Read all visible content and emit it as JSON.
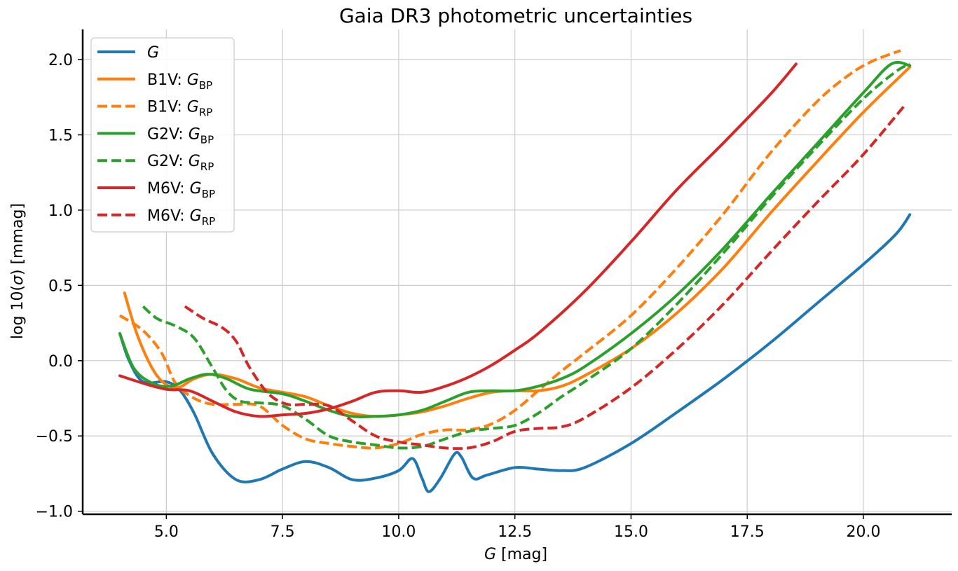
{
  "chart_data": {
    "type": "line",
    "title": "Gaia DR3 photometric uncertainties",
    "xlabel": {
      "var": "G",
      "unit": " [mag]"
    },
    "ylabel": {
      "prefix": "log 10(",
      "sym": "σ",
      "suffix": ") [mmag]"
    },
    "xlim": [
      3.2,
      21.9
    ],
    "ylim": [
      -1.02,
      2.2
    ],
    "xticks": [
      5.0,
      7.5,
      10.0,
      12.5,
      15.0,
      17.5,
      20.0
    ],
    "xtick_labels": [
      "5.0",
      "7.5",
      "10.0",
      "12.5",
      "15.0",
      "17.5",
      "20.0"
    ],
    "yticks": [
      -1.0,
      -0.5,
      0.0,
      0.5,
      1.0,
      1.5,
      2.0
    ],
    "ytick_labels": [
      "−1.0",
      "−0.5",
      "0.0",
      "0.5",
      "1.0",
      "1.5",
      "2.0"
    ],
    "grid": true,
    "legend_position": "top-left",
    "series": [
      {
        "name": "G",
        "legend_prefix": "",
        "legend_var": "G",
        "legend_sub": "",
        "color": "#1f77b4",
        "dash": "solid",
        "x": [
          4.0,
          4.2,
          4.5,
          5.0,
          5.3,
          5.6,
          6.0,
          6.5,
          7.0,
          7.5,
          8.0,
          8.5,
          9.0,
          9.5,
          10.0,
          10.3,
          10.5,
          10.65,
          10.9,
          11.2,
          11.35,
          11.6,
          11.9,
          12.5,
          13.0,
          13.5,
          14.0,
          15.0,
          16.0,
          17.0,
          18.0,
          19.0,
          20.0,
          20.7,
          21.0
        ],
        "y": [
          0.18,
          0.0,
          -0.14,
          -0.14,
          -0.2,
          -0.35,
          -0.62,
          -0.79,
          -0.79,
          -0.72,
          -0.67,
          -0.71,
          -0.79,
          -0.78,
          -0.73,
          -0.65,
          -0.78,
          -0.87,
          -0.78,
          -0.62,
          -0.64,
          -0.78,
          -0.76,
          -0.71,
          -0.72,
          -0.73,
          -0.71,
          -0.55,
          -0.34,
          -0.12,
          0.12,
          0.38,
          0.64,
          0.84,
          0.97
        ]
      },
      {
        "name": "B1V: G_BP",
        "legend_prefix": "B1V: ",
        "legend_var": "G",
        "legend_sub": "BP",
        "color": "#ff7f0e",
        "dash": "solid",
        "x": [
          4.1,
          4.4,
          4.8,
          5.2,
          5.6,
          6.0,
          6.5,
          7.0,
          7.5,
          8.0,
          8.5,
          9.0,
          9.5,
          10.0,
          10.5,
          11.0,
          11.5,
          12.0,
          12.5,
          13.0,
          13.5,
          14.0,
          15.0,
          16.0,
          17.0,
          18.0,
          19.0,
          20.0,
          21.0
        ],
        "y": [
          0.45,
          0.15,
          -0.1,
          -0.18,
          -0.12,
          -0.09,
          -0.12,
          -0.18,
          -0.21,
          -0.24,
          -0.3,
          -0.35,
          -0.37,
          -0.36,
          -0.34,
          -0.3,
          -0.25,
          -0.21,
          -0.2,
          -0.2,
          -0.17,
          -0.1,
          0.08,
          0.32,
          0.62,
          0.98,
          1.32,
          1.65,
          1.95
        ]
      },
      {
        "name": "B1V: G_RP",
        "legend_prefix": "B1V: ",
        "legend_var": "G",
        "legend_sub": "RP",
        "color": "#ff7f0e",
        "dash": "dashed",
        "x": [
          4.0,
          4.5,
          4.9,
          5.2,
          5.6,
          6.0,
          6.5,
          7.0,
          7.5,
          8.0,
          8.5,
          9.0,
          9.5,
          10.0,
          10.5,
          11.0,
          11.5,
          12.0,
          12.5,
          13.0,
          13.5,
          14.0,
          15.0,
          16.0,
          17.0,
          18.0,
          19.0,
          19.7,
          20.2,
          20.8
        ],
        "y": [
          0.3,
          0.2,
          0.05,
          -0.15,
          -0.25,
          -0.29,
          -0.29,
          -0.3,
          -0.43,
          -0.52,
          -0.55,
          -0.57,
          -0.58,
          -0.55,
          -0.49,
          -0.46,
          -0.46,
          -0.42,
          -0.33,
          -0.2,
          -0.07,
          0.05,
          0.3,
          0.62,
          0.98,
          1.38,
          1.72,
          1.9,
          1.99,
          2.06
        ]
      },
      {
        "name": "G2V: G_BP",
        "legend_prefix": "G2V: ",
        "legend_var": "G",
        "legend_sub": "BP",
        "color": "#2ca02c",
        "dash": "solid",
        "x": [
          4.0,
          4.3,
          4.7,
          5.1,
          5.5,
          5.9,
          6.3,
          6.8,
          7.5,
          8.0,
          8.5,
          9.0,
          9.5,
          10.0,
          10.5,
          11.0,
          11.5,
          12.0,
          12.5,
          13.0,
          13.5,
          14.0,
          15.0,
          16.0,
          17.0,
          18.0,
          19.0,
          20.0,
          20.6,
          21.0
        ],
        "y": [
          0.18,
          -0.05,
          -0.15,
          -0.17,
          -0.12,
          -0.09,
          -0.12,
          -0.19,
          -0.22,
          -0.27,
          -0.33,
          -0.37,
          -0.37,
          -0.36,
          -0.33,
          -0.27,
          -0.21,
          -0.2,
          -0.2,
          -0.17,
          -0.12,
          -0.04,
          0.18,
          0.44,
          0.75,
          1.1,
          1.44,
          1.78,
          1.97,
          1.96
        ]
      },
      {
        "name": "G2V: G_RP",
        "legend_prefix": "G2V: ",
        "legend_var": "G",
        "legend_sub": "RP",
        "color": "#2ca02c",
        "dash": "dashed",
        "x": [
          4.5,
          4.8,
          5.2,
          5.6,
          6.0,
          6.3,
          6.6,
          7.0,
          7.5,
          8.0,
          8.5,
          9.0,
          9.5,
          10.0,
          10.5,
          11.0,
          11.5,
          12.0,
          12.5,
          13.0,
          13.5,
          14.0,
          15.0,
          16.0,
          17.0,
          18.0,
          19.0,
          20.0,
          20.7,
          21.0
        ],
        "y": [
          0.36,
          0.28,
          0.23,
          0.15,
          -0.05,
          -0.2,
          -0.27,
          -0.28,
          -0.3,
          -0.39,
          -0.5,
          -0.54,
          -0.56,
          -0.58,
          -0.57,
          -0.52,
          -0.47,
          -0.45,
          -0.43,
          -0.35,
          -0.24,
          -0.14,
          0.08,
          0.38,
          0.72,
          1.08,
          1.42,
          1.74,
          1.92,
          1.97
        ]
      },
      {
        "name": "M6V: G_BP",
        "legend_prefix": "M6V: ",
        "legend_var": "G",
        "legend_sub": "BP",
        "color": "#d62728",
        "dash": "solid",
        "x": [
          4.0,
          4.5,
          5.0,
          5.5,
          6.0,
          6.5,
          7.0,
          7.5,
          8.0,
          8.5,
          9.0,
          9.5,
          10.0,
          10.5,
          11.0,
          11.5,
          12.0,
          12.5,
          13.0,
          14.0,
          15.0,
          16.0,
          17.0,
          18.0,
          18.55
        ],
        "y": [
          -0.1,
          -0.15,
          -0.19,
          -0.2,
          -0.27,
          -0.34,
          -0.37,
          -0.36,
          -0.35,
          -0.32,
          -0.27,
          -0.21,
          -0.2,
          -0.21,
          -0.17,
          -0.11,
          -0.03,
          0.07,
          0.18,
          0.46,
          0.79,
          1.14,
          1.45,
          1.77,
          1.97
        ]
      },
      {
        "name": "M6V: G_RP",
        "legend_prefix": "M6V: ",
        "legend_var": "G",
        "legend_sub": "RP",
        "color": "#d62728",
        "dash": "dashed",
        "x": [
          5.4,
          5.8,
          6.2,
          6.5,
          6.8,
          7.2,
          7.6,
          8.0,
          8.5,
          9.0,
          9.5,
          10.0,
          10.5,
          11.0,
          11.5,
          12.0,
          12.5,
          13.0,
          13.5,
          14.0,
          15.0,
          16.0,
          17.0,
          18.0,
          19.0,
          20.0,
          20.9
        ],
        "y": [
          0.36,
          0.28,
          0.22,
          0.13,
          -0.05,
          -0.22,
          -0.29,
          -0.29,
          -0.3,
          -0.4,
          -0.5,
          -0.54,
          -0.56,
          -0.58,
          -0.58,
          -0.54,
          -0.47,
          -0.45,
          -0.44,
          -0.38,
          -0.18,
          0.08,
          0.38,
          0.72,
          1.05,
          1.37,
          1.7
        ]
      }
    ]
  }
}
